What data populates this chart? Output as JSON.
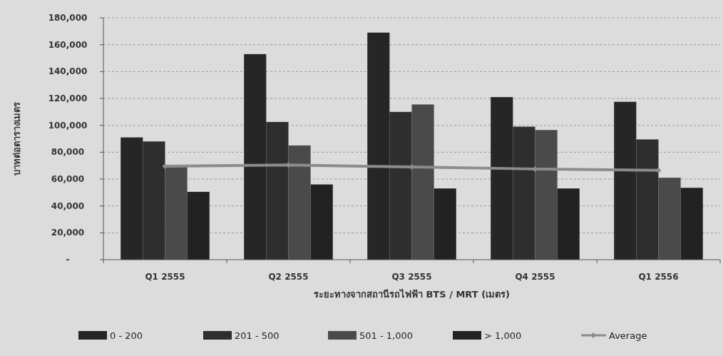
{
  "chart_data": {
    "type": "bar",
    "xlabel": "ระยะทางจากสถานีรถไฟฟ้า BTS / MRT (เมตร)",
    "ylabel": "บาทต่อตารางเมตร",
    "categories": [
      "Q1 2555",
      "Q2 2555",
      "Q3 2555",
      "Q4 2555",
      "Q1 2556"
    ],
    "series": [
      {
        "name": "0 - 200",
        "color": "#262626",
        "values": [
          91000,
          153000,
          169000,
          121000,
          117500
        ]
      },
      {
        "name": "201 - 500",
        "color": "#2e2e2e",
        "values": [
          88000,
          102500,
          110000,
          99000,
          89500
        ]
      },
      {
        "name": "501 - 1,000",
        "color": "#4a4a4a",
        "values": [
          69000,
          85000,
          115500,
          96500,
          61000
        ]
      },
      {
        "name": "> 1,000",
        "color": "#222222",
        "values": [
          50500,
          56000,
          53000,
          53000,
          53500
        ]
      },
      {
        "name": "Average",
        "type": "line",
        "color": "#8c8c8c",
        "marker": "diamond",
        "values": [
          69500,
          70500,
          69000,
          67500,
          66500
        ]
      }
    ],
    "ylim": [
      0,
      180000
    ],
    "yticks": [
      {
        "value": 0,
        "label": "-"
      },
      {
        "value": 20000,
        "label": "20,000"
      },
      {
        "value": 40000,
        "label": "40,000"
      },
      {
        "value": 60000,
        "label": "60,000"
      },
      {
        "value": 80000,
        "label": "80,000"
      },
      {
        "value": 100000,
        "label": "100,000"
      },
      {
        "value": 120000,
        "label": "120,000"
      },
      {
        "value": 140000,
        "label": "140,000"
      },
      {
        "value": 160000,
        "label": "160,000"
      },
      {
        "value": 180000,
        "label": "180,000"
      }
    ],
    "grid": "y",
    "legend": "bottom"
  }
}
